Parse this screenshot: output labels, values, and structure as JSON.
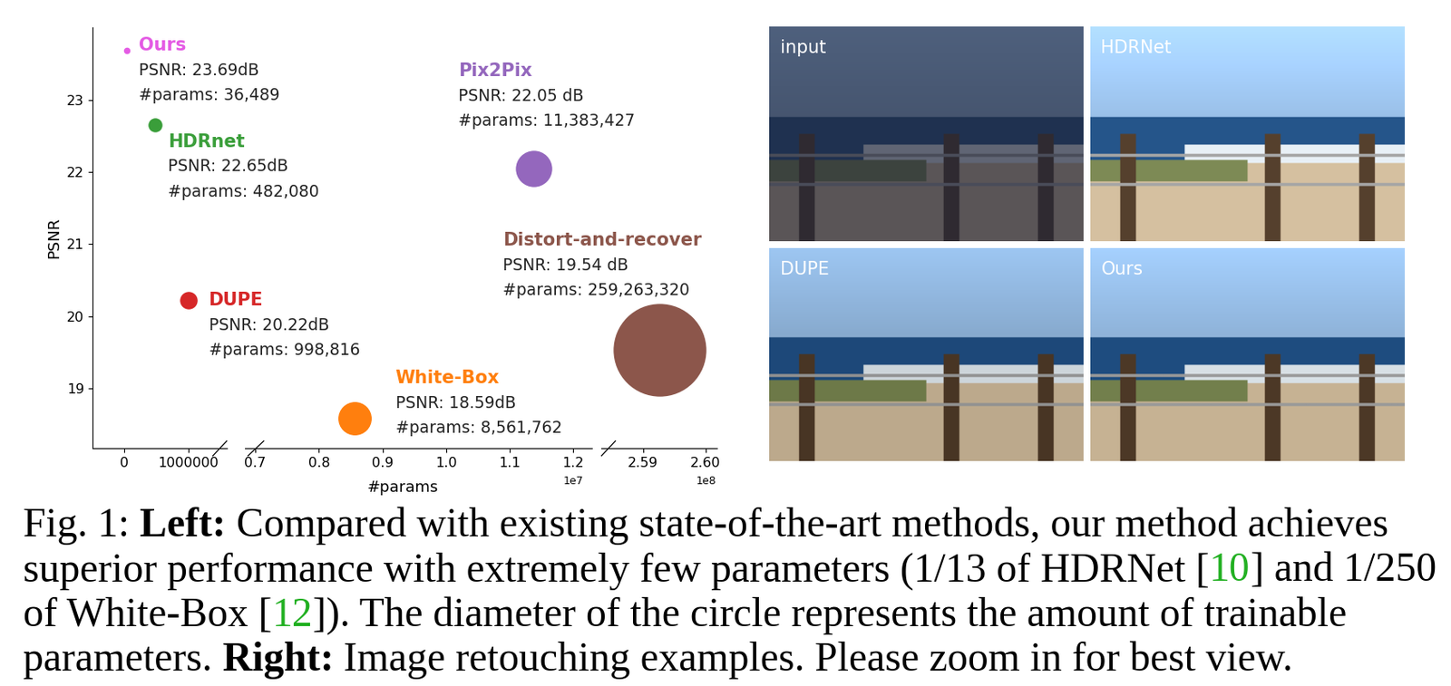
{
  "chart_data": {
    "type": "scatter",
    "xlabel": "#params",
    "ylabel": "PSNR",
    "ylim": [
      18.17,
      24.0
    ],
    "yticks": [
      19,
      20,
      21,
      22,
      23
    ],
    "x_segments": [
      {
        "xlim": [
          -500000,
          1600000
        ],
        "xticks": [
          0,
          1000000
        ]
      },
      {
        "xlim": [
          6840000,
          12300000
        ],
        "xticks": [
          {
            "value": 7000000,
            "label": "0.7"
          },
          {
            "value": 8000000,
            "label": "0.8"
          },
          {
            "value": 9000000,
            "label": "0.9"
          },
          {
            "value": 10000000,
            "label": "1.0"
          },
          {
            "value": 11000000,
            "label": "1.1"
          },
          {
            "value": 12000000,
            "label": "1.2"
          }
        ],
        "offset_label": "1e7"
      },
      {
        "xlim": [
          258340000,
          260180000
        ],
        "xticks": [
          {
            "value": 259000000,
            "label": "2.59"
          },
          {
            "value": 260000000,
            "label": "2.60"
          }
        ],
        "offset_label": "1e8"
      }
    ],
    "series": [
      {
        "name": "Ours",
        "color": "#e45be4",
        "x": [
          36489
        ],
        "y": [
          23.69
        ],
        "annotation": [
          "PSNR: 23.69dB",
          "#params: 36,489"
        ]
      },
      {
        "name": "HDRnet",
        "color": "#3a9e3a",
        "x": [
          482080
        ],
        "y": [
          22.65
        ],
        "annotation": [
          "PSNR: 22.65dB",
          "#params: 482,080"
        ]
      },
      {
        "name": "DUPE",
        "color": "#d62728",
        "x": [
          998816
        ],
        "y": [
          20.22
        ],
        "annotation": [
          "PSNR: 20.22dB",
          "#params: 998,816"
        ]
      },
      {
        "name": "White-Box",
        "color": "#ff7f0e",
        "x": [
          8561762
        ],
        "y": [
          18.59
        ],
        "annotation": [
          "PSNR: 18.59dB",
          "#params: 8,561,762"
        ]
      },
      {
        "name": "Pix2Pix",
        "color": "#9467bd",
        "x": [
          11383427
        ],
        "y": [
          22.05
        ],
        "annotation": [
          "PSNR: 22.05 dB",
          "#params: 11,383,427"
        ]
      },
      {
        "name": "Distort-and-recover",
        "color": "#8c564b",
        "x": [
          259263320
        ],
        "y": [
          19.54
        ],
        "annotation": [
          "PSNR: 19.54 dB",
          "#params: 259,263,320"
        ]
      }
    ]
  },
  "images": [
    {
      "label": "input"
    },
    {
      "label": "HDRNet"
    },
    {
      "label": "DUPE"
    },
    {
      "label": "Ours"
    }
  ],
  "caption": [
    [
      {
        "text": "Fig. 1: "
      },
      {
        "text": "Left: ",
        "bold": true
      },
      {
        "text": "Compared with existing state-of-the-art methods, our method achieves"
      }
    ],
    [
      {
        "text": "superior performance with extremely few parameters (1/13 of HDRNet ["
      },
      {
        "text": "10",
        "color": "#22b022"
      },
      {
        "text": "] and 1/250"
      }
    ],
    [
      {
        "text": "of White-Box ["
      },
      {
        "text": "12",
        "color": "#22b022"
      },
      {
        "text": "]). The diameter of the circle represents the amount of trainable"
      }
    ],
    [
      {
        "text": "parameters. "
      },
      {
        "text": "Right: ",
        "bold": true
      },
      {
        "text": "Image retouching examples. Please zoom in for best view."
      }
    ]
  ]
}
